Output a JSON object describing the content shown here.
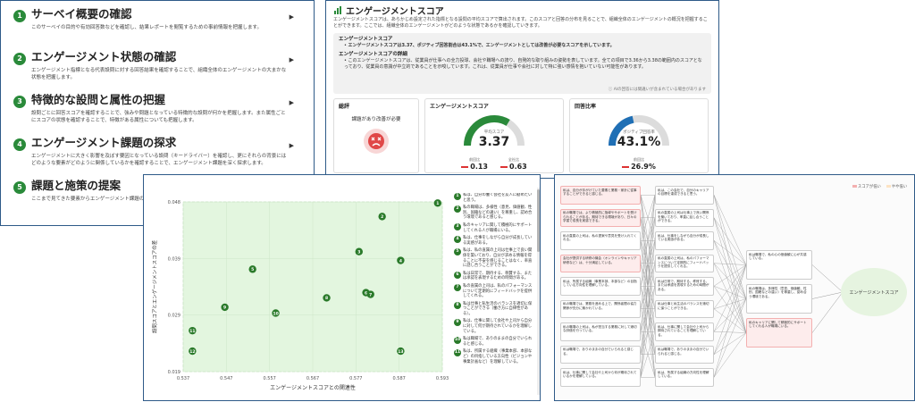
{
  "steps": [
    {
      "num": "1",
      "title": "サーベイ概要の確認",
      "desc": "このサーベイの目的や有効回答数などを確認し、結果レポートを閲覧するための事前情報を把握します。"
    },
    {
      "num": "2",
      "title": "エンゲージメント状態の確認",
      "desc": "エンゲージメント指標となる代表設問に対する回答結果を確認することで、組織全体のエンゲージメントの大まかな状態を把握します。"
    },
    {
      "num": "3",
      "title": "特徴的な設問と属性の把握",
      "desc": "設問ごとに回答スコアを確認することで、強みや問題となっている特徴的な設問が何かを把握します。また属性ごとにスコアの状態を確認することで、特徴がある属性についても把握します。"
    },
    {
      "num": "4",
      "title": "エンゲージメント課題の探求",
      "desc": "エンゲージメントに大きく影響を及ぼす要因となっている設問（キードライバー）を確認し、更にそれらの背景にはどのような要素がどのように関係しているかを確認することで、エンゲージメント課題を深く探求します。"
    },
    {
      "num": "5",
      "title": "課題と施策の提案",
      "desc": "ここまで見てきた要素からエンゲージメント課題の発見と施策を提案します"
    }
  ],
  "score": {
    "title": "エンゲージメントスコア",
    "intro": "エンゲージメントスコアは、あらかじめ設定された指標となる設問の平均スコアで算出されます。このスコアと回答の分布を見ることで、組織全体のエンゲージメントの概況を把握することができます。ここでは、組織全体のエンゲージメントがどのような状態であるかを確認していきます。",
    "ai_head": "エンゲージメントスコア",
    "ai_point": "エンゲージメントスコアは3.37、ポジティブ回答割合は43.1%で、エンゲージメントとしては改善が必要なスコアを示しています。",
    "ai_detail_head": "エンゲージメントスコアの詳細",
    "ai_detail": "このエンゲージメントスコアは、従業員が仕事への全力投球、会社や職場への誇り、自発的な取り組みの姿勢を表しています。全ての項目で3.36から3.38の範囲内のスコアとなっており、従業員の意識が中立的であることを示唆しています。これは、従業員が仕事や会社に対して特に強い感情を抱いていない可能性があります。",
    "ai_note": "AIの回答には間違いが含まれている場合があります",
    "eval_title": "総評",
    "eval_text": "課題があり改善が必要",
    "es_title": "エンゲージメントスコア",
    "es_label": "平均スコア",
    "es_value": "3.37",
    "es_delta1_label": "前回比",
    "es_delta1": "0.13",
    "es_delta2_label": "全社比",
    "es_delta2": "0.63",
    "es_fraction": 0.675,
    "rr_title": "回答比率",
    "rr_label": "ポジティブ回答率",
    "rr_value": "43.1%",
    "rr_delta_label": "前回比",
    "rr_delta": "26.9%",
    "rr_fraction": 0.431,
    "colors": {
      "green": "#2a8a3a",
      "blue": "#1f6fb5",
      "red": "#d33333"
    }
  },
  "scatter": {
    "xlabel": "エンゲージメントスコアとの関連性",
    "ylabel": "設問スコアとエンゲージメントスコアの差",
    "xticks": [
      "0.537",
      "0.547",
      "0.557",
      "0.567",
      "0.577",
      "0.587",
      "0.593"
    ],
    "yticks": [
      "0.048",
      "0.039",
      "0.029",
      "0.019"
    ],
    "points": [
      {
        "id": "1",
        "x": 0.592,
        "y": 0.0478
      },
      {
        "id": "2",
        "x": 0.58,
        "y": 0.0455
      },
      {
        "id": "3",
        "x": 0.575,
        "y": 0.0395
      },
      {
        "id": "4",
        "x": 0.584,
        "y": 0.038
      },
      {
        "id": "5",
        "x": 0.552,
        "y": 0.0365
      },
      {
        "id": "6",
        "x": 0.5765,
        "y": 0.0325
      },
      {
        "id": "7",
        "x": 0.5775,
        "y": 0.0322
      },
      {
        "id": "8",
        "x": 0.568,
        "y": 0.0316
      },
      {
        "id": "9",
        "x": 0.546,
        "y": 0.03
      },
      {
        "id": "10",
        "x": 0.557,
        "y": 0.029
      },
      {
        "id": "11",
        "x": 0.539,
        "y": 0.026
      },
      {
        "id": "12",
        "x": 0.539,
        "y": 0.0225
      },
      {
        "id": "13",
        "x": 0.584,
        "y": 0.0225
      }
    ],
    "items": [
      {
        "id": "1",
        "text": "私は、自分の働く会社を友人に勧めたいと思う。"
      },
      {
        "id": "2",
        "text": "私の職場は、多様性（意見、価値観、性別、国籍などの違い）を尊重し、認め合う環境であると感じる。"
      },
      {
        "id": "3",
        "text": "私のキャリアに関して積極的にサポートしてくれる人が職場にいる。"
      },
      {
        "id": "4",
        "text": "私は、仕事をしながら自分が成長している実感がある。"
      },
      {
        "id": "5",
        "text": "私は、私の直属の上司は仕事上で良い関係を築いており、自分が求める情報を得ることに不安を感じることはなく、率直に話し合うことができる。"
      },
      {
        "id": "6",
        "text": "私は日常で、期待する、称賛する、または承認を表現するための時間がある。"
      },
      {
        "id": "7",
        "text": "私の直属の上司は、私のパフォーマンスについて定期的にフィードバックを提供してくれる。"
      },
      {
        "id": "8",
        "text": "私は仕事と私生活のバランスを適切に保つことができる（働き方に自律性がある）。"
      },
      {
        "id": "9",
        "text": "私は、仕事に関して会社や上司から自分に対して何が期待されているかを理解している。"
      },
      {
        "id": "10",
        "text": "私は職場で、ありのままの自分でいられると感じる。"
      },
      {
        "id": "11",
        "text": "私は、所属する組織（事業本部、本部など）の目指している方向性（ビジョンや事業計画など）を理解している。"
      }
    ]
  },
  "diagram": {
    "legend_low": "スコアが低い",
    "legend_mid": "やや低い",
    "target": "エンゲージメントスコア",
    "col1": [
      {
        "text": "私は、自分が手がけていた要素と業務・家計に従事することができると感じる。",
        "low": true
      },
      {
        "text": "私の職場では、より積極的に指導やサポートを受けられることがある。期待できる環境があり、日々の学習で成長を実感できる。",
        "low": true
      },
      {
        "text": "私の直属の上司は、私の提案や意見を受け入れてくれる。",
        "low": false
      },
      {
        "text": "会社が提供する研修の機会（オンラインやキャリア研修など）は、十分満足している。",
        "low": true
      },
      {
        "text": "私は、所属する組織（事業本部、本部など）の目指している方向性を理解している。",
        "low": false
      },
      {
        "text": "私の職場では、業務を進める上で、関係者間の協力関係が充分に築かれている。",
        "low": false
      },
      {
        "text": "私の職場の上司は、私が担当する業務に対して適切な評価を行っている。",
        "low": false
      },
      {
        "text": "私は職場で、ありのままの自分でいられると感じる。",
        "low": false
      },
      {
        "text": "私は、仕事に関して会社や上司から何が期待されているかを理解している。",
        "low": false
      }
    ],
    "col2": [
      {
        "text": "私は、この会社で、自分のキャリアの目標を達成できると思う。",
        "low": false
      },
      {
        "text": "私の直属の上司は仕事上で良い関係を築いており、率直に話し合うことができる。",
        "low": false
      },
      {
        "text": "私は、仕事をしながら自分が成長している実感がある。",
        "low": false
      },
      {
        "text": "私の直属の上司は、私のパフォーマンスについて定期的にフィードバックを提供してくれる。",
        "low": false
      },
      {
        "text": "私は日常で、期待する、称賛する、または承認を表現するための時間がある。",
        "low": false
      },
      {
        "text": "私は仕事と私生活のバランスを適切に保つことができる。",
        "low": false
      },
      {
        "text": "私は、仕事に関して会社や上司から期待されていることを理解している。",
        "low": false
      },
      {
        "text": "私は職場で、ありのままの自分でいられると感じる。",
        "low": false
      },
      {
        "text": "私は、所属する組織の方向性を理解している。",
        "low": false
      }
    ],
    "col3": [
      {
        "text": "私は職場で、私の心の価値観に心が共感している。",
        "low": false
      },
      {
        "text": "私の職場は、多様性（意見、価値観、性別、国籍などの違い）を尊重し、認め合う環境である。",
        "low": false
      },
      {
        "text": "私のキャリアに関して積極的にサポートしてくれる人が職場にいる。",
        "low": true
      }
    ]
  }
}
